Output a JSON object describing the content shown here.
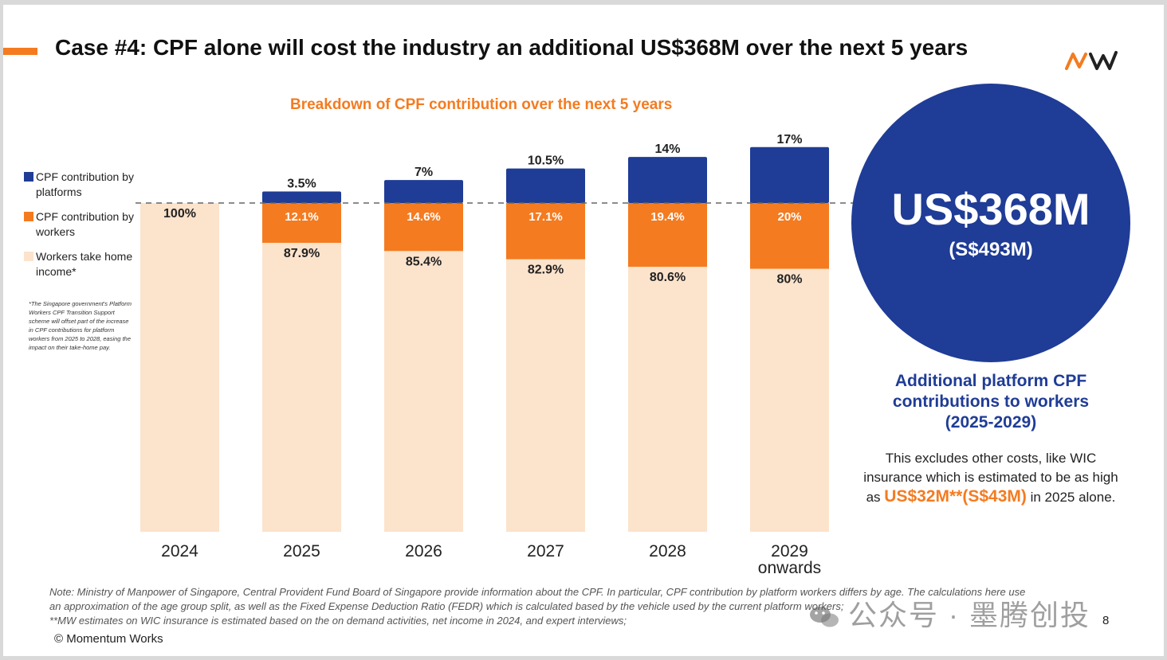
{
  "slide": {
    "title": "Case #4: CPF alone will cost the industry an additional US$368M over the next 5 years",
    "logo_text": "MW"
  },
  "legend": {
    "items": [
      {
        "label": "CPF contribution by platforms",
        "color": "#1f3c96"
      },
      {
        "label": "CPF contribution by workers",
        "color": "#f47b20"
      },
      {
        "label": "Workers take home income*",
        "color": "#fce3cc"
      }
    ]
  },
  "footnote": "*The Singapore government's Platform Workers CPF Transition Support scheme will offset part of the increase in CPF contributions for platform workers from 2025 to 2028, easing the impact on their take-home pay.",
  "chart_data": {
    "type": "bar",
    "stacked": true,
    "title": "Breakdown of CPF contribution over the next 5 years",
    "categories": [
      "2024",
      "2025",
      "2026",
      "2027",
      "2028",
      "2029 onwards"
    ],
    "series": [
      {
        "name": "Workers take home income*",
        "color": "#fce3cc",
        "values": [
          100,
          87.9,
          85.4,
          82.9,
          80.6,
          80
        ],
        "labels": [
          "100%",
          "87.9%",
          "85.4%",
          "82.9%",
          "80.6%",
          "80%"
        ]
      },
      {
        "name": "CPF contribution by workers",
        "color": "#f47b20",
        "values": [
          0,
          12.1,
          14.6,
          17.1,
          19.4,
          20
        ],
        "labels": [
          "",
          "12.1%",
          "14.6%",
          "17.1%",
          "19.4%",
          "20%"
        ]
      },
      {
        "name": "CPF contribution by platforms",
        "color": "#1f3c96",
        "values": [
          0,
          3.5,
          7,
          10.5,
          14,
          17
        ],
        "labels": [
          "",
          "3.5%",
          "7%",
          "10.5%",
          "14%",
          "17%"
        ]
      }
    ],
    "reference_line": 100,
    "grid": false,
    "legend": "left"
  },
  "callout": {
    "big_value": "US$368M",
    "big_sub": "(S$493M)",
    "circle_color": "#1f3c96",
    "caption_lines": [
      "Additional platform CPF",
      "contributions to workers",
      "(2025-2029)"
    ],
    "excl_text_1": "This excludes other costs, like WIC",
    "excl_text_2": "insurance which is estimated to be as high",
    "excl_text_3a": "as ",
    "excl_highlight": "US$32M**(S$43M)",
    "excl_text_3b": " in 2025 alone."
  },
  "note": {
    "line1": "Note: Ministry of Manpower of Singapore, Central Provident Fund Board of Singapore provide information about the CPF. In particular, CPF contribution by platform workers differs by age. The calculations here use",
    "line2": "an approximation of the age group split, as well as the Fixed Expense Deduction Ratio (FEDR) which is calculated based by the vehicle used by the current platform workers;",
    "line3": "**MW estimates on WIC insurance is estimated based on the on demand activities, net income in 2024, and expert interviews;"
  },
  "copyright": "© Momentum Works",
  "page_number": "8",
  "watermark": "公众号 · 墨腾创投",
  "colors": {
    "accent": "#f47b20",
    "brand_blue": "#1f3c96",
    "cream": "#fce3cc"
  }
}
